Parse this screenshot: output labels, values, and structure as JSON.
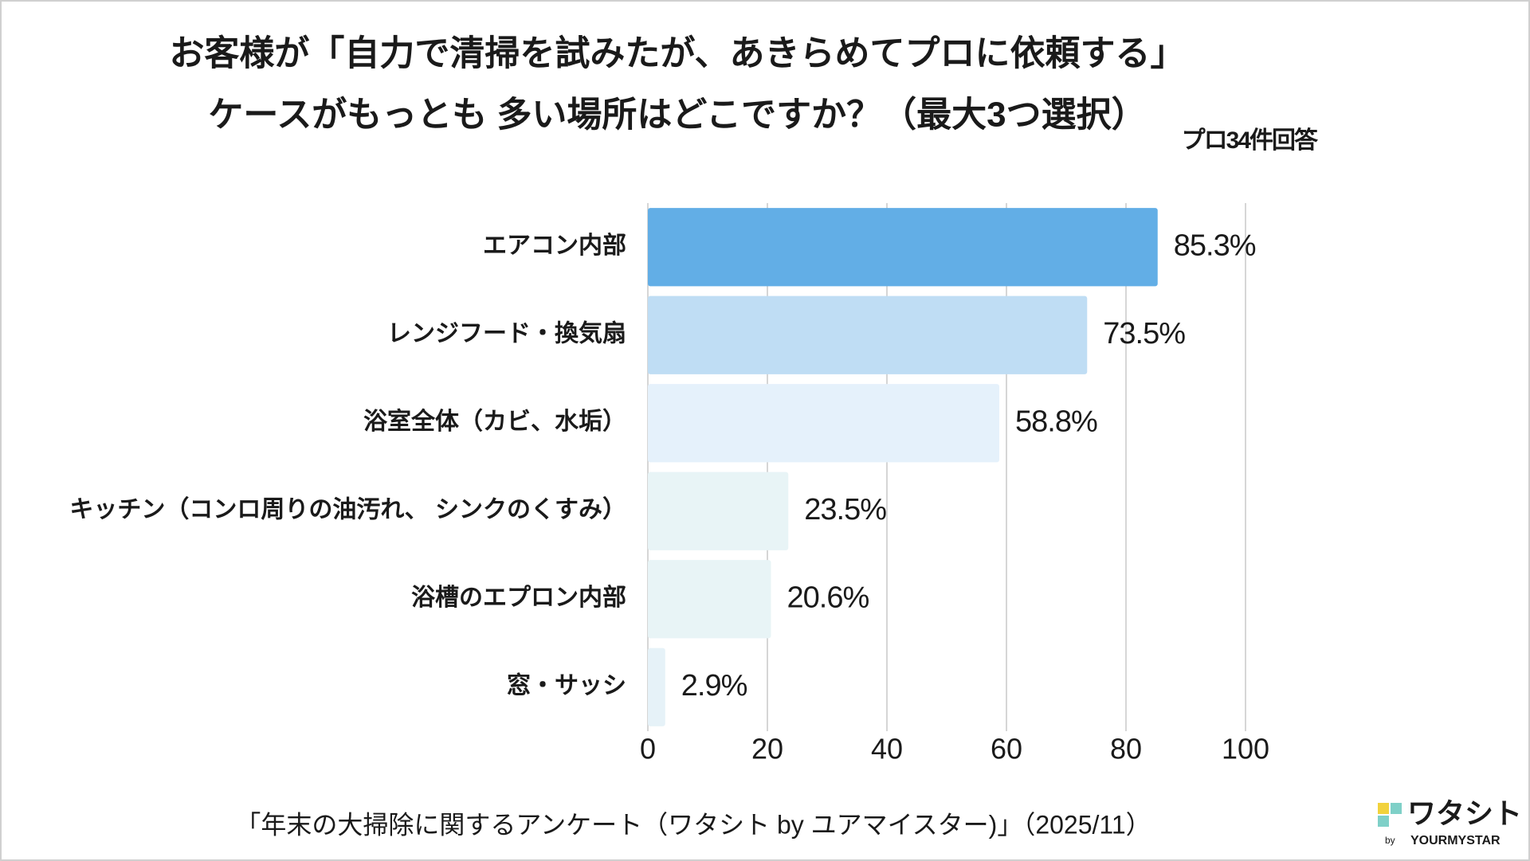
{
  "chart_data": {
    "type": "barh",
    "title_lines": [
      "お客様が「自力で清掃を試みたが、あきらめてプロに依頼する」",
      "ケースがもっとも 多い場所はどこですか？（最大3つ選択）"
    ],
    "note": "プロ34件回答",
    "categories": [
      "エアコン内部",
      "レンジフード・換気扇",
      "浴室全体（カビ、水垢）",
      "キッチン（コンロ周りの油汚れ、 シンクのくすみ）",
      "浴槽のエプロン内部",
      "窓・サッシ"
    ],
    "values": [
      85.3,
      73.5,
      58.8,
      23.5,
      20.6,
      2.9
    ],
    "value_labels": [
      "85.3%",
      "73.5%",
      "58.8%",
      "23.5%",
      "20.6%",
      "2.9%"
    ],
    "colors": [
      "#62aee6",
      "#bfddf4",
      "#e5f1fb",
      "#e8f4f6",
      "#e8f4f6",
      "#e6f2f8"
    ],
    "xlim": [
      0,
      100
    ],
    "xticks": [
      0,
      20,
      40,
      60,
      80,
      100
    ],
    "grid": true,
    "source": "「年末の大掃除に関するアンケート（ワタシト by ユアマイスター)」（2025/11）",
    "logo": {
      "name": "ワタシト",
      "by": "by",
      "brand": "YOURMYSTAR"
    }
  }
}
